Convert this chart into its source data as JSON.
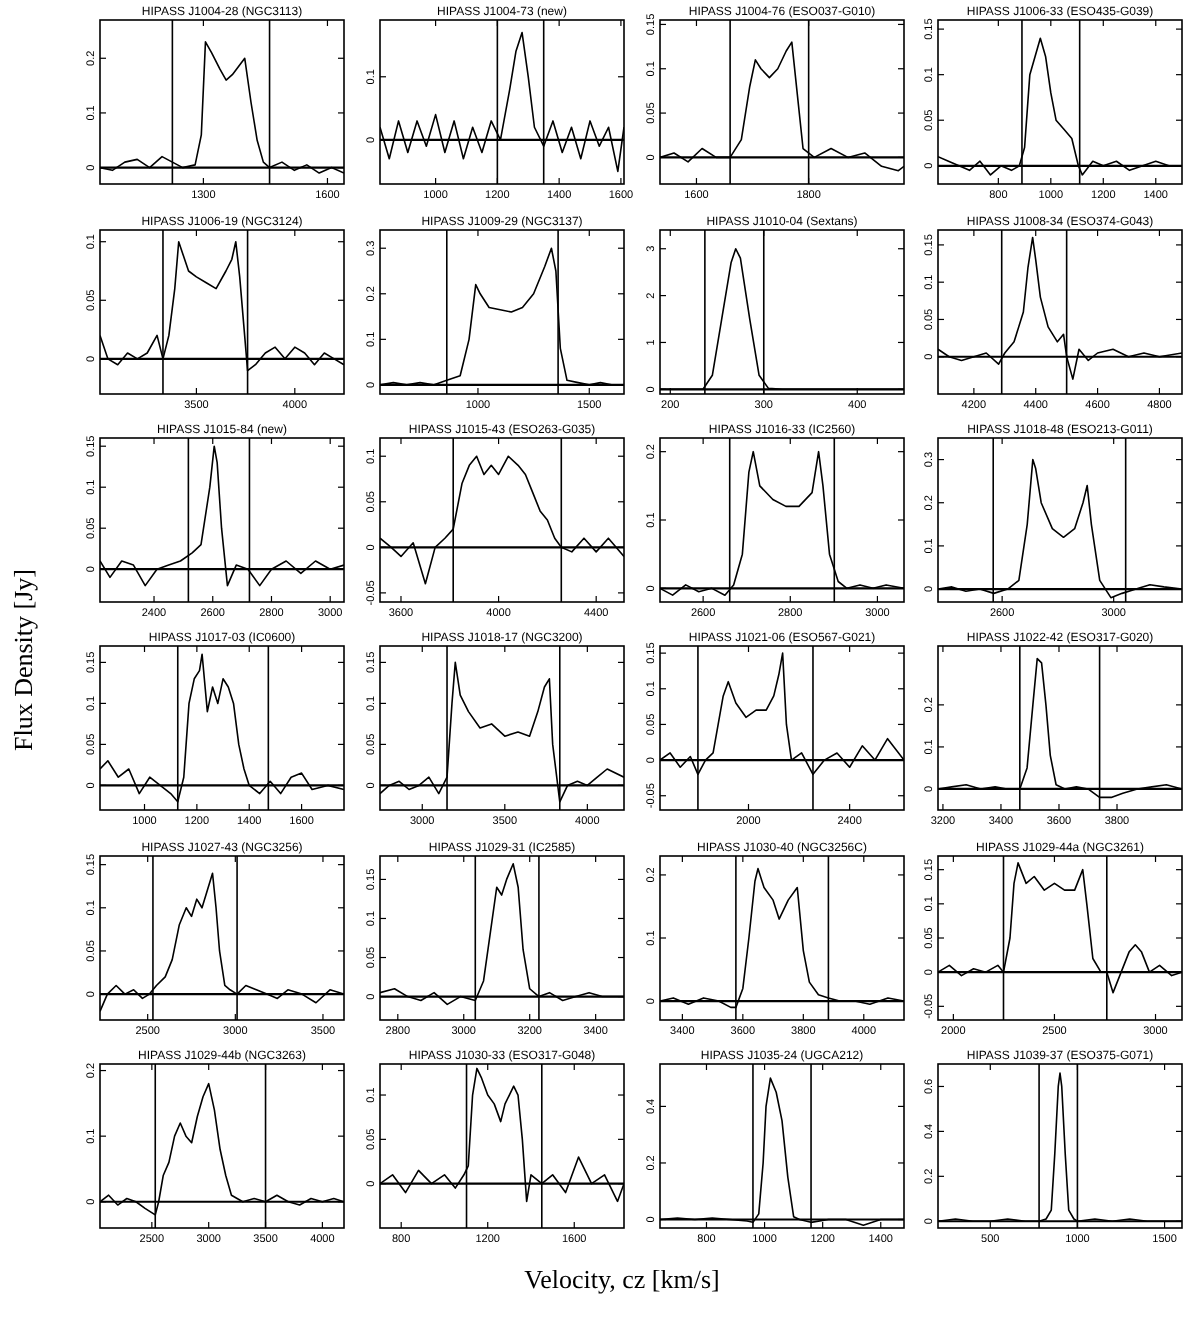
{
  "chart_data": [
    {
      "type": "line",
      "title": "HIPASS J1004-28 (NGC3113)",
      "xlim": [
        1050,
        1640
      ],
      "xticks": [
        1300,
        1600
      ],
      "ylim": [
        -0.03,
        0.27
      ],
      "yticks": [
        0,
        0.1,
        0.2
      ],
      "ref_lines": [
        {
          "axis": "x",
          "value": 1225
        },
        {
          "axis": "x",
          "value": 1460
        },
        {
          "axis": "y",
          "value": 0
        }
      ],
      "series": [
        {
          "color": "#000000",
          "x": [
            1050,
            1080,
            1110,
            1140,
            1170,
            1200,
            1225,
            1250,
            1280,
            1295,
            1305,
            1320,
            1340,
            1355,
            1370,
            1390,
            1400,
            1415,
            1430,
            1445,
            1460,
            1490,
            1520,
            1550,
            1580,
            1610,
            1640
          ],
          "values": [
            0,
            -0.005,
            0.01,
            0.015,
            0,
            0.02,
            0.01,
            0,
            0.005,
            0.06,
            0.23,
            0.21,
            0.18,
            0.16,
            0.17,
            0.19,
            0.2,
            0.12,
            0.05,
            0.01,
            0,
            0.01,
            -0.005,
            0.005,
            -0.01,
            0,
            -0.01
          ]
        }
      ]
    },
    {
      "type": "line",
      "title": "HIPASS J1004-73 (new)",
      "xlim": [
        820,
        1610
      ],
      "xticks": [
        1000,
        1200,
        1400,
        1600
      ],
      "ylim": [
        -0.07,
        0.19
      ],
      "yticks": [
        0,
        0.1
      ],
      "ref_lines": [
        {
          "axis": "x",
          "value": 1200
        },
        {
          "axis": "x",
          "value": 1350
        },
        {
          "axis": "y",
          "value": 0
        }
      ],
      "series": [
        {
          "color": "#000000",
          "x": [
            820,
            850,
            880,
            910,
            940,
            970,
            1000,
            1030,
            1060,
            1090,
            1120,
            1150,
            1180,
            1210,
            1240,
            1260,
            1280,
            1300,
            1320,
            1350,
            1380,
            1410,
            1440,
            1470,
            1500,
            1530,
            1560,
            1590,
            1610
          ],
          "values": [
            0.02,
            -0.03,
            0.03,
            -0.02,
            0.03,
            -0.01,
            0.04,
            -0.02,
            0.03,
            -0.03,
            0.02,
            -0.02,
            0.03,
            0,
            0.08,
            0.14,
            0.17,
            0.1,
            0.02,
            -0.01,
            0.03,
            -0.02,
            0.02,
            -0.03,
            0.03,
            -0.01,
            0.02,
            -0.05,
            0.02
          ]
        }
      ]
    },
    {
      "type": "line",
      "title": "HIPASS J1004-76 (ESO037-G010)",
      "xlim": [
        1535,
        1970
      ],
      "xticks": [
        1600,
        1800
      ],
      "ylim": [
        -0.03,
        0.155
      ],
      "yticks": [
        0,
        0.05,
        0.1,
        0.15
      ],
      "ref_lines": [
        {
          "axis": "x",
          "value": 1660
        },
        {
          "axis": "x",
          "value": 1800
        },
        {
          "axis": "y",
          "value": 0
        }
      ],
      "series": [
        {
          "color": "#000000",
          "x": [
            1535,
            1560,
            1585,
            1610,
            1635,
            1660,
            1680,
            1695,
            1705,
            1715,
            1730,
            1745,
            1760,
            1770,
            1780,
            1790,
            1810,
            1840,
            1870,
            1900,
            1930,
            1960,
            1970
          ],
          "values": [
            0,
            0.005,
            -0.005,
            0.01,
            0,
            0,
            0.02,
            0.08,
            0.11,
            0.1,
            0.09,
            0.1,
            0.12,
            0.13,
            0.07,
            0.01,
            0,
            0.01,
            0,
            0.005,
            -0.01,
            -0.015,
            -0.01
          ]
        }
      ]
    },
    {
      "type": "line",
      "title": "HIPASS J1006-33 (ESO435-G039)",
      "xlim": [
        570,
        1500
      ],
      "xticks": [
        800,
        1000,
        1200,
        1400
      ],
      "ylim": [
        -0.02,
        0.16
      ],
      "yticks": [
        0,
        0.05,
        0.1,
        0.15
      ],
      "ref_lines": [
        {
          "axis": "x",
          "value": 890
        },
        {
          "axis": "x",
          "value": 1110
        },
        {
          "axis": "y",
          "value": 0
        }
      ],
      "series": [
        {
          "color": "#000000",
          "x": [
            570,
            610,
            650,
            690,
            730,
            770,
            810,
            850,
            880,
            900,
            920,
            940,
            960,
            980,
            1000,
            1020,
            1050,
            1080,
            1105,
            1120,
            1160,
            1200,
            1250,
            1300,
            1350,
            1400,
            1450,
            1500
          ],
          "values": [
            0.01,
            0.005,
            0,
            -0.005,
            0.005,
            -0.01,
            0,
            -0.005,
            0,
            0.02,
            0.1,
            0.12,
            0.14,
            0.12,
            0.08,
            0.05,
            0.04,
            0.03,
            0,
            -0.01,
            0.005,
            0,
            0.005,
            -0.005,
            0,
            0.005,
            0,
            0
          ]
        }
      ]
    },
    {
      "type": "line",
      "title": "HIPASS J1006-19 (NGC3124)",
      "xlim": [
        3010,
        4250
      ],
      "xticks": [
        3500,
        4000
      ],
      "ylim": [
        -0.03,
        0.11
      ],
      "yticks": [
        0,
        0.05,
        0.1
      ],
      "ref_lines": [
        {
          "axis": "x",
          "value": 3330
        },
        {
          "axis": "x",
          "value": 3760
        },
        {
          "axis": "y",
          "value": 0
        }
      ],
      "series": [
        {
          "color": "#000000",
          "x": [
            3010,
            3050,
            3100,
            3150,
            3200,
            3250,
            3300,
            3330,
            3360,
            3390,
            3410,
            3430,
            3460,
            3500,
            3550,
            3600,
            3650,
            3680,
            3700,
            3720,
            3745,
            3760,
            3800,
            3850,
            3900,
            3950,
            4000,
            4050,
            4100,
            4150,
            4200,
            4250
          ],
          "values": [
            0.02,
            0,
            -0.005,
            0.005,
            0,
            0.005,
            0.02,
            0,
            0.02,
            0.06,
            0.1,
            0.09,
            0.075,
            0.07,
            0.065,
            0.06,
            0.075,
            0.085,
            0.1,
            0.07,
            0.02,
            -0.01,
            -0.005,
            0.005,
            0.01,
            0,
            0.01,
            0.005,
            -0.005,
            0.005,
            0,
            -0.005
          ]
        }
      ]
    },
    {
      "type": "line",
      "title": "HIPASS J1009-29 (NGC3137)",
      "xlim": [
        560,
        1656
      ],
      "xticks": [
        1000,
        1500
      ],
      "ylim": [
        -0.02,
        0.34
      ],
      "yticks": [
        0,
        0.1,
        0.2,
        0.3
      ],
      "ref_lines": [
        {
          "axis": "x",
          "value": 860
        },
        {
          "axis": "x",
          "value": 1360
        },
        {
          "axis": "y",
          "value": 0
        }
      ],
      "series": [
        {
          "color": "#000000",
          "x": [
            560,
            620,
            680,
            740,
            800,
            860,
            920,
            960,
            990,
            1010,
            1050,
            1100,
            1150,
            1200,
            1250,
            1300,
            1330,
            1350,
            1370,
            1400,
            1450,
            1500,
            1550,
            1600,
            1656
          ],
          "values": [
            0,
            0.005,
            0,
            0.005,
            0,
            0.01,
            0.02,
            0.1,
            0.22,
            0.2,
            0.17,
            0.165,
            0.16,
            0.17,
            0.2,
            0.26,
            0.3,
            0.25,
            0.08,
            0.01,
            0.005,
            0,
            0.005,
            0,
            0
          ]
        }
      ]
    },
    {
      "type": "line",
      "title": "HIPASS J1010-04 (Sextans)",
      "xlim": [
        189,
        450
      ],
      "xticks": [
        200,
        300,
        400
      ],
      "ylim": [
        -0.1,
        3.4
      ],
      "yticks": [
        0,
        1,
        2,
        3
      ],
      "ref_lines": [
        {
          "axis": "x",
          "value": 237
        },
        {
          "axis": "x",
          "value": 300
        },
        {
          "axis": "y",
          "value": 0
        }
      ],
      "series": [
        {
          "color": "#000000",
          "x": [
            189,
            200,
            220,
            235,
            245,
            255,
            265,
            270,
            275,
            285,
            295,
            305,
            320,
            350,
            380,
            410,
            450
          ],
          "values": [
            0,
            0,
            0,
            0,
            0.3,
            1.5,
            2.7,
            3,
            2.8,
            1.5,
            0.3,
            0.02,
            0,
            0,
            0,
            0,
            0
          ]
        }
      ]
    },
    {
      "type": "line",
      "title": "HIPASS J1008-34 (ESO374-G043)",
      "xlim": [
        4084,
        4873
      ],
      "xticks": [
        4200,
        4400,
        4600,
        4800
      ],
      "ylim": [
        -0.05,
        0.17
      ],
      "yticks": [
        0,
        0.05,
        0.1,
        0.15
      ],
      "ref_lines": [
        {
          "axis": "x",
          "value": 4290
        },
        {
          "axis": "x",
          "value": 4500
        },
        {
          "axis": "y",
          "value": 0
        }
      ],
      "series": [
        {
          "color": "#000000",
          "x": [
            4084,
            4120,
            4160,
            4200,
            4240,
            4280,
            4300,
            4330,
            4360,
            4375,
            4390,
            4400,
            4415,
            4440,
            4470,
            4490,
            4500,
            4520,
            4540,
            4570,
            4600,
            4650,
            4700,
            4750,
            4800,
            4873
          ],
          "values": [
            0.01,
            0,
            -0.005,
            0,
            0.005,
            -0.01,
            0.005,
            0.02,
            0.06,
            0.12,
            0.16,
            0.13,
            0.08,
            0.04,
            0.02,
            0.03,
            0,
            -0.03,
            0.01,
            -0.005,
            0.005,
            0.01,
            0,
            0.005,
            0,
            0.005
          ]
        }
      ]
    },
    {
      "type": "line",
      "title": "HIPASS J1015-84 (new)",
      "xlim": [
        2216,
        3047
      ],
      "xticks": [
        2400,
        2600,
        2800,
        3000
      ],
      "ylim": [
        -0.04,
        0.16
      ],
      "yticks": [
        0,
        0.05,
        0.1,
        0.15
      ],
      "ref_lines": [
        {
          "axis": "x",
          "value": 2517
        },
        {
          "axis": "x",
          "value": 2725
        },
        {
          "axis": "y",
          "value": 0
        }
      ],
      "series": [
        {
          "color": "#000000",
          "x": [
            2216,
            2250,
            2290,
            2330,
            2370,
            2410,
            2450,
            2490,
            2530,
            2560,
            2590,
            2605,
            2615,
            2630,
            2650,
            2680,
            2720,
            2760,
            2800,
            2850,
            2900,
            2950,
            3000,
            3047
          ],
          "values": [
            0.01,
            -0.01,
            0.01,
            0.005,
            -0.02,
            0,
            0.005,
            0.01,
            0.02,
            0.03,
            0.1,
            0.15,
            0.13,
            0.05,
            -0.02,
            0.005,
            0,
            -0.02,
            0,
            0.01,
            -0.005,
            0.01,
            0,
            0.005
          ]
        }
      ]
    },
    {
      "type": "line",
      "title": "HIPASS J1015-43 (ESO263-G035)",
      "xlim": [
        3514,
        4514
      ],
      "xticks": [
        3600,
        4000,
        4400
      ],
      "ylim": [
        -0.06,
        0.12
      ],
      "yticks": [
        -0.05,
        0,
        0.05,
        0.1
      ],
      "ref_lines": [
        {
          "axis": "x",
          "value": 3814
        },
        {
          "axis": "x",
          "value": 4257
        },
        {
          "axis": "y",
          "value": 0
        }
      ],
      "series": [
        {
          "color": "#000000",
          "x": [
            3514,
            3560,
            3600,
            3650,
            3700,
            3740,
            3780,
            3814,
            3850,
            3880,
            3910,
            3940,
            3970,
            4000,
            4040,
            4080,
            4110,
            4140,
            4170,
            4200,
            4230,
            4257,
            4300,
            4350,
            4400,
            4450,
            4514
          ],
          "values": [
            0.01,
            0,
            -0.01,
            0.005,
            -0.04,
            0,
            0.01,
            0.02,
            0.07,
            0.09,
            0.1,
            0.08,
            0.09,
            0.08,
            0.1,
            0.09,
            0.08,
            0.06,
            0.04,
            0.03,
            0.01,
            0,
            -0.005,
            0.01,
            -0.005,
            0.01,
            -0.01
          ]
        }
      ]
    },
    {
      "type": "line",
      "title": "HIPASS J1016-33 (IC2560)",
      "xlim": [
        2501,
        3061
      ],
      "xticks": [
        2600,
        2800,
        3000
      ],
      "ylim": [
        -0.02,
        0.22
      ],
      "yticks": [
        0,
        0.1,
        0.2
      ],
      "ref_lines": [
        {
          "axis": "x",
          "value": 2661
        },
        {
          "axis": "x",
          "value": 2901
        },
        {
          "axis": "y",
          "value": 0
        }
      ],
      "series": [
        {
          "color": "#000000",
          "x": [
            2501,
            2530,
            2560,
            2590,
            2620,
            2650,
            2670,
            2690,
            2705,
            2715,
            2730,
            2760,
            2790,
            2820,
            2850,
            2865,
            2875,
            2890,
            2910,
            2930,
            2960,
            2990,
            3020,
            3061
          ],
          "values": [
            0,
            -0.01,
            0.005,
            -0.005,
            0,
            -0.01,
            0.005,
            0.05,
            0.17,
            0.2,
            0.15,
            0.13,
            0.12,
            0.12,
            0.14,
            0.2,
            0.15,
            0.05,
            0.01,
            0,
            0.005,
            0,
            0.005,
            0
          ]
        }
      ]
    },
    {
      "type": "line",
      "title": "HIPASS J1018-48 (ESO213-G011)",
      "xlim": [
        2370,
        3245
      ],
      "xticks": [
        2600,
        3000
      ],
      "ylim": [
        -0.03,
        0.35
      ],
      "yticks": [
        0,
        0.1,
        0.2,
        0.3
      ],
      "ref_lines": [
        {
          "axis": "x",
          "value": 2568
        },
        {
          "axis": "x",
          "value": 3043
        },
        {
          "axis": "y",
          "value": 0
        }
      ],
      "series": [
        {
          "color": "#000000",
          "x": [
            2370,
            2420,
            2470,
            2520,
            2570,
            2620,
            2660,
            2690,
            2710,
            2720,
            2740,
            2780,
            2820,
            2860,
            2890,
            2905,
            2920,
            2950,
            2990,
            3030,
            3080,
            3130,
            3180,
            3245
          ],
          "values": [
            0,
            0.005,
            -0.005,
            0,
            -0.01,
            0,
            0.02,
            0.15,
            0.3,
            0.28,
            0.2,
            0.14,
            0.12,
            0.14,
            0.2,
            0.24,
            0.15,
            0.02,
            -0.02,
            -0.01,
            0,
            0.01,
            0.005,
            0
          ]
        }
      ]
    },
    {
      "type": "line",
      "title": "HIPASS J1017-03 (IC0600)",
      "ylabel": "Flux Density  [Jy]",
      "xlim": [
        830,
        1762
      ],
      "xticks": [
        1000,
        1200,
        1400,
        1600
      ],
      "ylim": [
        -0.03,
        0.17
      ],
      "yticks": [
        0,
        0.05,
        0.1,
        0.15
      ],
      "ref_lines": [
        {
          "axis": "x",
          "value": 1127
        },
        {
          "axis": "x",
          "value": 1473
        },
        {
          "axis": "y",
          "value": 0
        }
      ],
      "series": [
        {
          "color": "#000000",
          "x": [
            830,
            860,
            900,
            940,
            980,
            1020,
            1060,
            1100,
            1127,
            1150,
            1170,
            1190,
            1210,
            1220,
            1240,
            1260,
            1280,
            1300,
            1320,
            1340,
            1360,
            1380,
            1400,
            1440,
            1480,
            1520,
            1560,
            1600,
            1640,
            1700,
            1762
          ],
          "values": [
            0.02,
            0.03,
            0.01,
            0.02,
            -0.01,
            0.01,
            0,
            -0.01,
            -0.02,
            0.01,
            0.1,
            0.13,
            0.14,
            0.16,
            0.09,
            0.12,
            0.1,
            0.13,
            0.12,
            0.1,
            0.05,
            0.02,
            0,
            -0.01,
            0.005,
            -0.01,
            0.01,
            0.015,
            -0.005,
            0,
            -0.005
          ]
        }
      ]
    },
    {
      "type": "line",
      "title": "HIPASS J1018-17 (NGC3200)",
      "xlim": [
        2744,
        4222
      ],
      "xticks": [
        3000,
        3500,
        4000
      ],
      "ylim": [
        -0.03,
        0.17
      ],
      "yticks": [
        0,
        0.05,
        0.1,
        0.15
      ],
      "ref_lines": [
        {
          "axis": "x",
          "value": 3150
        },
        {
          "axis": "x",
          "value": 3833
        },
        {
          "axis": "y",
          "value": 0
        }
      ],
      "series": [
        {
          "color": "#000000",
          "x": [
            2744,
            2800,
            2860,
            2920,
            2980,
            3040,
            3100,
            3150,
            3180,
            3200,
            3230,
            3280,
            3350,
            3420,
            3500,
            3580,
            3650,
            3700,
            3740,
            3770,
            3790,
            3833,
            3880,
            3940,
            4000,
            4060,
            4120,
            4222
          ],
          "values": [
            -0.01,
            0,
            0.005,
            -0.005,
            0,
            0.01,
            -0.01,
            0.01,
            0.1,
            0.15,
            0.11,
            0.09,
            0.07,
            0.075,
            0.06,
            0.065,
            0.06,
            0.09,
            0.12,
            0.13,
            0.05,
            -0.02,
            0,
            0.005,
            0,
            0.01,
            0.02,
            0.01
          ]
        }
      ]
    },
    {
      "type": "line",
      "title": "HIPASS J1021-06 (ESO567-G021)",
      "xlim": [
        1650,
        2615
      ],
      "xticks": [
        2000,
        2400
      ],
      "ylim": [
        -0.07,
        0.16
      ],
      "yticks": [
        -0.05,
        0,
        0.05,
        0.1,
        0.15
      ],
      "ref_lines": [
        {
          "axis": "x",
          "value": 1800
        },
        {
          "axis": "x",
          "value": 2255
        },
        {
          "axis": "y",
          "value": 0
        }
      ],
      "series": [
        {
          "color": "#000000",
          "x": [
            1650,
            1690,
            1730,
            1770,
            1800,
            1830,
            1860,
            1880,
            1900,
            1920,
            1950,
            1990,
            2030,
            2070,
            2100,
            2120,
            2135,
            2150,
            2170,
            2210,
            2255,
            2300,
            2350,
            2400,
            2450,
            2500,
            2550,
            2615
          ],
          "values": [
            0,
            0.01,
            -0.01,
            0.005,
            -0.02,
            0,
            0.01,
            0.05,
            0.09,
            0.11,
            0.08,
            0.06,
            0.07,
            0.07,
            0.09,
            0.12,
            0.15,
            0.05,
            0,
            0.01,
            -0.02,
            0,
            0.01,
            -0.01,
            0.02,
            0,
            0.03,
            0
          ]
        }
      ]
    },
    {
      "type": "line",
      "title": "HIPASS J1022-42 (ESO317-G020)",
      "xlim": [
        3183,
        4024
      ],
      "xticks": [
        3200,
        3400,
        3600,
        3800
      ],
      "ylim": [
        -0.05,
        0.34
      ],
      "yticks": [
        0,
        0.1,
        0.2
      ],
      "ref_lines": [
        {
          "axis": "x",
          "value": 3465
        },
        {
          "axis": "x",
          "value": 3740
        },
        {
          "axis": "y",
          "value": 0
        }
      ],
      "series": [
        {
          "color": "#000000",
          "x": [
            3183,
            3230,
            3280,
            3330,
            3380,
            3420,
            3465,
            3490,
            3510,
            3525,
            3540,
            3555,
            3570,
            3590,
            3620,
            3660,
            3700,
            3740,
            3780,
            3820,
            3870,
            3920,
            3970,
            4024
          ],
          "values": [
            0,
            0.005,
            0.01,
            0,
            0.005,
            0,
            0,
            0.05,
            0.2,
            0.31,
            0.3,
            0.2,
            0.08,
            0.01,
            0,
            0.005,
            0,
            -0.02,
            -0.02,
            -0.01,
            0,
            0.005,
            0.01,
            0
          ]
        }
      ]
    },
    {
      "type": "line",
      "title": "HIPASS J1027-43 (NGC3256)",
      "xlim": [
        2228,
        3620
      ],
      "xticks": [
        2500,
        3000,
        3500
      ],
      "ylim": [
        -0.03,
        0.16
      ],
      "yticks": [
        0,
        0.05,
        0.1,
        0.15
      ],
      "ref_lines": [
        {
          "axis": "x",
          "value": 2530
        },
        {
          "axis": "x",
          "value": 3010
        },
        {
          "axis": "y",
          "value": 0
        }
      ],
      "series": [
        {
          "color": "#000000",
          "x": [
            2228,
            2270,
            2320,
            2370,
            2420,
            2470,
            2510,
            2550,
            2600,
            2640,
            2680,
            2720,
            2750,
            2780,
            2810,
            2840,
            2870,
            2890,
            2910,
            2940,
            2970,
            3010,
            3060,
            3120,
            3180,
            3240,
            3300,
            3380,
            3460,
            3540,
            3620
          ],
          "values": [
            -0.02,
            0,
            0.01,
            0,
            0.005,
            -0.005,
            0,
            0.01,
            0.02,
            0.04,
            0.08,
            0.1,
            0.09,
            0.11,
            0.1,
            0.12,
            0.14,
            0.1,
            0.05,
            0.01,
            0.005,
            0,
            0.01,
            0.005,
            0,
            -0.005,
            0.005,
            0,
            -0.01,
            0.005,
            0
          ]
        }
      ]
    },
    {
      "type": "line",
      "title": "HIPASS J1029-31 (IC2585)",
      "xlim": [
        2746,
        3486
      ],
      "xticks": [
        2800,
        3000,
        3200,
        3400
      ],
      "ylim": [
        -0.03,
        0.18
      ],
      "yticks": [
        0,
        0.05,
        0.1,
        0.15
      ],
      "ref_lines": [
        {
          "axis": "x",
          "value": 3035
        },
        {
          "axis": "x",
          "value": 3228
        },
        {
          "axis": "y",
          "value": 0
        }
      ],
      "series": [
        {
          "color": "#000000",
          "x": [
            2746,
            2790,
            2830,
            2870,
            2910,
            2950,
            2990,
            3035,
            3060,
            3080,
            3100,
            3115,
            3130,
            3150,
            3165,
            3180,
            3200,
            3228,
            3260,
            3300,
            3340,
            3380,
            3420,
            3486
          ],
          "values": [
            0.005,
            0.01,
            0,
            -0.005,
            0.005,
            -0.01,
            0,
            -0.005,
            0.02,
            0.08,
            0.14,
            0.13,
            0.15,
            0.17,
            0.14,
            0.06,
            0.01,
            0,
            0.005,
            -0.005,
            0,
            0.005,
            0,
            0
          ]
        }
      ]
    },
    {
      "type": "line",
      "title": "HIPASS J1030-40 (NGC3256C)",
      "xlim": [
        3326,
        4133
      ],
      "xticks": [
        3400,
        3600,
        3800,
        4000
      ],
      "ylim": [
        -0.03,
        0.23
      ],
      "yticks": [
        0,
        0.1,
        0.2
      ],
      "ref_lines": [
        {
          "axis": "x",
          "value": 3577
        },
        {
          "axis": "x",
          "value": 3883
        },
        {
          "axis": "y",
          "value": 0
        }
      ],
      "series": [
        {
          "color": "#000000",
          "x": [
            3326,
            3370,
            3420,
            3470,
            3520,
            3560,
            3577,
            3600,
            3620,
            3640,
            3650,
            3670,
            3700,
            3720,
            3750,
            3780,
            3800,
            3820,
            3850,
            3883,
            3920,
            3970,
            4020,
            4080,
            4133
          ],
          "values": [
            0,
            0.005,
            -0.005,
            0.005,
            0,
            -0.01,
            -0.01,
            0.02,
            0.1,
            0.19,
            0.21,
            0.18,
            0.16,
            0.13,
            0.16,
            0.18,
            0.08,
            0.03,
            0.01,
            0.005,
            0,
            0,
            -0.005,
            0.005,
            0
          ]
        }
      ]
    },
    {
      "type": "line",
      "title": "HIPASS J1029-44a (NGC3261)",
      "xlim": [
        1924,
        3131
      ],
      "xticks": [
        2000,
        2500,
        3000
      ],
      "ylim": [
        -0.07,
        0.17
      ],
      "yticks": [
        -0.05,
        0,
        0.05,
        0.1,
        0.15
      ],
      "ref_lines": [
        {
          "axis": "x",
          "value": 2248
        },
        {
          "axis": "x",
          "value": 2759
        },
        {
          "axis": "y",
          "value": 0
        }
      ],
      "series": [
        {
          "color": "#000000",
          "x": [
            1924,
            1980,
            2040,
            2100,
            2160,
            2220,
            2248,
            2280,
            2300,
            2320,
            2360,
            2400,
            2450,
            2500,
            2550,
            2600,
            2640,
            2660,
            2690,
            2730,
            2759,
            2790,
            2830,
            2870,
            2900,
            2930,
            2970,
            3020,
            3080,
            3131
          ],
          "values": [
            0,
            0.01,
            -0.005,
            0.005,
            0,
            0.01,
            0,
            0.05,
            0.13,
            0.16,
            0.13,
            0.14,
            0.12,
            0.13,
            0.12,
            0.12,
            0.15,
            0.1,
            0.02,
            0,
            0,
            -0.03,
            0,
            0.03,
            0.04,
            0.03,
            0,
            0.01,
            -0.005,
            0
          ]
        }
      ]
    },
    {
      "type": "line",
      "title": "HIPASS J1029-44b (NGC3263)",
      "xlim": [
        2044,
        4190
      ],
      "xticks": [
        2500,
        3000,
        3500,
        4000
      ],
      "ylim": [
        -0.04,
        0.21
      ],
      "yticks": [
        0,
        0.1,
        0.2
      ],
      "ref_lines": [
        {
          "axis": "x",
          "value": 2530
        },
        {
          "axis": "x",
          "value": 3500
        },
        {
          "axis": "y",
          "value": 0
        }
      ],
      "series": [
        {
          "color": "#000000",
          "x": [
            2044,
            2120,
            2200,
            2280,
            2360,
            2440,
            2530,
            2560,
            2600,
            2650,
            2700,
            2750,
            2800,
            2850,
            2900,
            2950,
            3000,
            3050,
            3100,
            3150,
            3200,
            3300,
            3400,
            3500,
            3600,
            3700,
            3800,
            3900,
            4000,
            4100,
            4190
          ],
          "values": [
            0,
            0.01,
            -0.005,
            0.005,
            0,
            -0.01,
            -0.02,
            0,
            0.04,
            0.06,
            0.1,
            0.12,
            0.1,
            0.09,
            0.13,
            0.16,
            0.18,
            0.14,
            0.08,
            0.04,
            0.01,
            0,
            0.005,
            0,
            0.01,
            0,
            -0.005,
            0.005,
            0,
            0.005,
            0
          ]
        }
      ]
    },
    {
      "type": "line",
      "title": "HIPASS J1030-33 (ESO317-G048)",
      "xlabel": "Velocity, cz [km/s]",
      "xlim": [
        702,
        1830
      ],
      "xticks": [
        800,
        1200,
        1600
      ],
      "ylim": [
        -0.05,
        0.135
      ],
      "yticks": [
        0,
        0.05,
        0.1
      ],
      "ref_lines": [
        {
          "axis": "x",
          "value": 1102
        },
        {
          "axis": "x",
          "value": 1450
        },
        {
          "axis": "y",
          "value": 0
        }
      ],
      "series": [
        {
          "color": "#000000",
          "x": [
            702,
            760,
            820,
            880,
            940,
            1000,
            1050,
            1090,
            1110,
            1130,
            1150,
            1170,
            1200,
            1230,
            1260,
            1280,
            1300,
            1320,
            1340,
            1360,
            1380,
            1400,
            1450,
            1500,
            1560,
            1620,
            1680,
            1740,
            1800,
            1830
          ],
          "values": [
            0,
            0.01,
            -0.01,
            0.015,
            0,
            0.01,
            -0.005,
            0.01,
            0.02,
            0.1,
            0.13,
            0.12,
            0.1,
            0.09,
            0.07,
            0.09,
            0.1,
            0.11,
            0.1,
            0.05,
            -0.02,
            0.01,
            0,
            0.01,
            -0.01,
            0.03,
            0,
            0.01,
            -0.02,
            0
          ]
        }
      ]
    },
    {
      "type": "line",
      "title": "HIPASS J1035-24 (UGCA212)",
      "xlim": [
        640,
        1480
      ],
      "xticks": [
        800,
        1000,
        1200,
        1400
      ],
      "ylim": [
        -0.03,
        0.55
      ],
      "yticks": [
        0,
        0.2,
        0.4
      ],
      "ref_lines": [
        {
          "axis": "x",
          "value": 960
        },
        {
          "axis": "x",
          "value": 1160
        },
        {
          "axis": "y",
          "value": 0
        }
      ],
      "series": [
        {
          "color": "#000000",
          "x": [
            640,
            700,
            760,
            820,
            880,
            940,
            960,
            980,
            995,
            1005,
            1020,
            1040,
            1060,
            1080,
            1100,
            1120,
            1160,
            1220,
            1280,
            1340,
            1400,
            1480
          ],
          "values": [
            0,
            0.005,
            0,
            0.005,
            0,
            -0.005,
            -0.01,
            0.02,
            0.2,
            0.4,
            0.5,
            0.45,
            0.35,
            0.15,
            0.01,
            0,
            -0.01,
            0,
            0,
            -0.02,
            0,
            0
          ]
        }
      ]
    },
    {
      "type": "line",
      "title": "HIPASS J1039-37 (ESO375-G071)",
      "xlim": [
        200,
        1600
      ],
      "xticks": [
        500,
        1000,
        1500
      ],
      "ylim": [
        -0.03,
        0.7
      ],
      "yticks": [
        0,
        0.2,
        0.4,
        0.6
      ],
      "ref_lines": [
        {
          "axis": "x",
          "value": 780
        },
        {
          "axis": "x",
          "value": 1000
        },
        {
          "axis": "y",
          "value": 0
        }
      ],
      "series": [
        {
          "color": "#000000",
          "x": [
            200,
            300,
            400,
            500,
            600,
            700,
            780,
            820,
            850,
            870,
            890,
            900,
            910,
            930,
            950,
            980,
            1000,
            1100,
            1200,
            1300,
            1400,
            1500,
            1600
          ],
          "values": [
            0,
            0.01,
            0,
            0,
            0.01,
            0,
            0,
            0.01,
            0.05,
            0.3,
            0.6,
            0.66,
            0.6,
            0.3,
            0.05,
            0.01,
            0,
            0.01,
            0,
            0.01,
            0,
            0,
            0
          ]
        }
      ]
    }
  ]
}
